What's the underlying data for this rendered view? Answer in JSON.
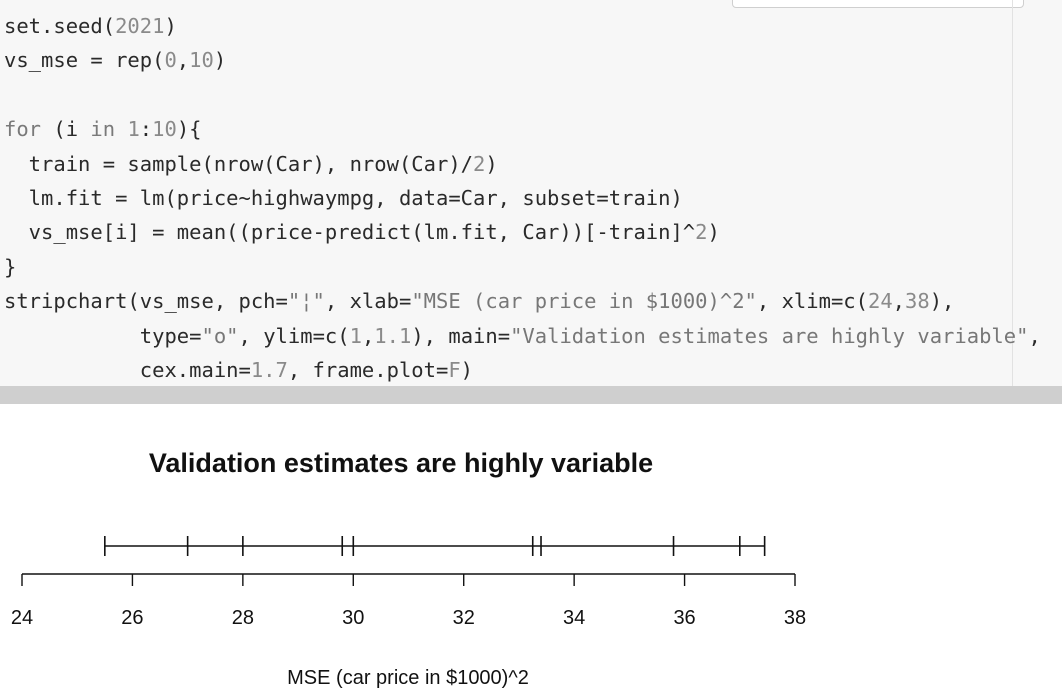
{
  "code_cell": {
    "lines": [
      [
        {
          "t": "set.seed("
        },
        {
          "t": "2021",
          "c": "num"
        },
        {
          "t": ")"
        }
      ],
      [
        {
          "t": "vs_mse = rep("
        },
        {
          "t": "0",
          "c": "num"
        },
        {
          "t": ","
        },
        {
          "t": "10",
          "c": "num"
        },
        {
          "t": ")"
        }
      ],
      [],
      [
        {
          "t": "for",
          "c": "kw"
        },
        {
          "t": " (i "
        },
        {
          "t": "in",
          "c": "kw"
        },
        {
          "t": " "
        },
        {
          "t": "1",
          "c": "num"
        },
        {
          "t": ":"
        },
        {
          "t": "10",
          "c": "num"
        },
        {
          "t": "){"
        }
      ],
      [
        {
          "t": "  train = sample(nrow(Car), nrow(Car)/"
        },
        {
          "t": "2",
          "c": "num"
        },
        {
          "t": ")"
        }
      ],
      [
        {
          "t": "  lm.fit = lm(price~highwaympg, data=Car, subset=train)"
        }
      ],
      [
        {
          "t": "  vs_mse[i] = mean((price-predict(lm.fit, Car))[-train]^"
        },
        {
          "t": "2",
          "c": "num"
        },
        {
          "t": ")"
        }
      ],
      [
        {
          "t": "}"
        }
      ],
      [
        {
          "t": "stripchart(vs_mse, pch="
        },
        {
          "t": "\"¦\"",
          "c": "str"
        },
        {
          "t": ", xlab="
        },
        {
          "t": "\"MSE (car price in $1000)^2\"",
          "c": "str"
        },
        {
          "t": ", xlim=c("
        },
        {
          "t": "24",
          "c": "num"
        },
        {
          "t": ","
        },
        {
          "t": "38",
          "c": "num"
        },
        {
          "t": "),"
        }
      ],
      [
        {
          "t": "           type="
        },
        {
          "t": "\"o\"",
          "c": "str"
        },
        {
          "t": ", ylim=c("
        },
        {
          "t": "1",
          "c": "num"
        },
        {
          "t": ","
        },
        {
          "t": "1.1",
          "c": "num"
        },
        {
          "t": "), main="
        },
        {
          "t": "\"Validation estimates are highly variable\"",
          "c": "str"
        },
        {
          "t": ","
        }
      ],
      [
        {
          "t": "           cex.main="
        },
        {
          "t": "1.7",
          "c": "num"
        },
        {
          "t": ", frame.plot="
        },
        {
          "t": "F",
          "c": "num"
        },
        {
          "t": ")"
        }
      ]
    ]
  },
  "chart_data": {
    "type": "scatter",
    "title": "Validation estimates are highly variable",
    "xlabel": "MSE (car price in $1000)^2",
    "xlim": [
      24,
      38
    ],
    "x_ticks": [
      24,
      26,
      28,
      30,
      32,
      34,
      36,
      38
    ],
    "x_tick_labels": [
      "24",
      "26",
      "28",
      "30",
      "32",
      "34",
      "36",
      "38"
    ],
    "values": [
      25.5,
      27.0,
      28.0,
      29.8,
      30.0,
      33.25,
      33.4,
      35.8,
      37.0,
      37.45
    ],
    "marker": "|",
    "connect_points": true
  }
}
